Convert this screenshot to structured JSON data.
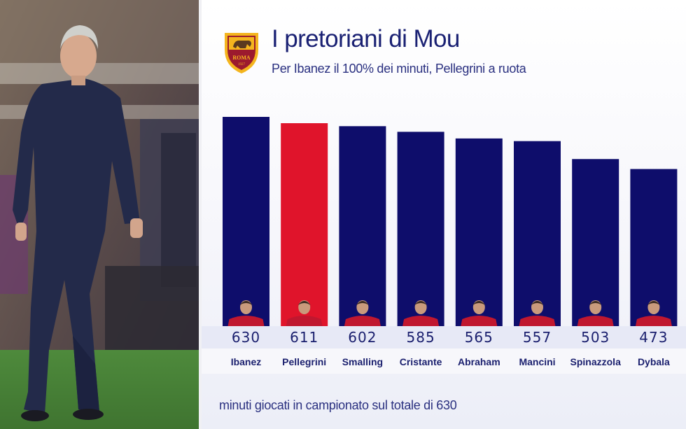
{
  "page": {
    "title": "I pretoriani di Mou",
    "subtitle": "Per Ibanez il 100% dei minuti, Pellegrini a ruota",
    "footnote": "minuti giocati in campionato sul totale di 630",
    "crest_text": "ROMA"
  },
  "colors": {
    "bar_default": "#0e0d6b",
    "bar_highlight": "#e0142b",
    "title": "#1a2173",
    "value_strip": "#e7e9f6",
    "name_strip": "#f7f7fb",
    "player_shirt": "#c0172f"
  },
  "chart_data": {
    "type": "bar",
    "categories": [
      "Ibanez",
      "Pellegrini",
      "Smalling",
      "Cristante",
      "Abraham",
      "Mancini",
      "Spinazzola",
      "Dybala"
    ],
    "values": [
      630,
      611,
      602,
      585,
      565,
      557,
      503,
      473
    ],
    "highlight": "Pellegrini",
    "total": 630,
    "title": "I pretoriani di Mou",
    "subtitle": "Per Ibanez il 100% dei minuti, Pellegrini a ruota",
    "xlabel": "",
    "ylabel": "",
    "grid": false,
    "legend": "none"
  }
}
